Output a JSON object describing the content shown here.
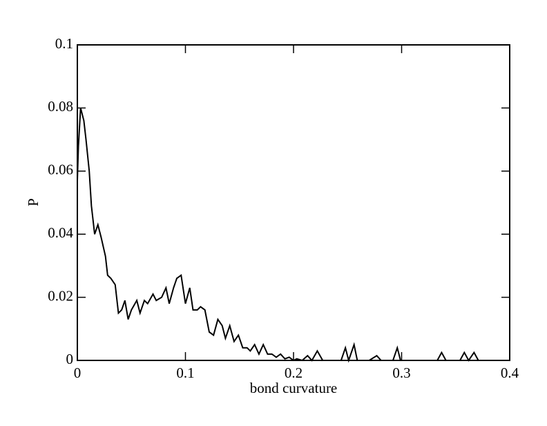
{
  "chart_data": {
    "type": "line",
    "xlabel": "bond curvature",
    "ylabel": "P",
    "x": [
      0,
      0.001,
      0.003,
      0.006,
      0.008,
      0.011,
      0.013,
      0.016,
      0.019,
      0.022,
      0.026,
      0.028,
      0.031,
      0.035,
      0.038,
      0.041,
      0.044,
      0.047,
      0.05,
      0.055,
      0.058,
      0.062,
      0.065,
      0.07,
      0.073,
      0.078,
      0.082,
      0.085,
      0.089,
      0.092,
      0.096,
      0.1,
      0.104,
      0.107,
      0.111,
      0.114,
      0.118,
      0.122,
      0.126,
      0.13,
      0.134,
      0.137,
      0.141,
      0.145,
      0.149,
      0.153,
      0.157,
      0.16,
      0.164,
      0.168,
      0.172,
      0.176,
      0.18,
      0.184,
      0.188,
      0.192,
      0.196,
      0.2,
      0.203,
      0.208,
      0.213,
      0.217,
      0.222,
      0.227,
      0.244,
      0.248,
      0.251,
      0.256,
      0.259,
      0.27,
      0.277,
      0.281,
      0.292,
      0.296,
      0.299,
      0.333,
      0.337,
      0.341,
      0.354,
      0.358,
      0.362,
      0.367,
      0.371
    ],
    "series": [
      {
        "color": "#000000",
        "values": [
          0.057,
          0.068,
          0.08,
          0.076,
          0.07,
          0.06,
          0.049,
          0.04,
          0.043,
          0.039,
          0.033,
          0.027,
          0.026,
          0.024,
          0.015,
          0.016,
          0.019,
          0.013,
          0.016,
          0.019,
          0.015,
          0.019,
          0.018,
          0.021,
          0.019,
          0.02,
          0.023,
          0.018,
          0.023,
          0.026,
          0.027,
          0.018,
          0.023,
          0.016,
          0.016,
          0.017,
          0.016,
          0.009,
          0.008,
          0.013,
          0.011,
          0.007,
          0.011,
          0.006,
          0.008,
          0.004,
          0.004,
          0.003,
          0.005,
          0.002,
          0.005,
          0.002,
          0.002,
          0.001,
          0.002,
          0.0005,
          0.001,
          0,
          0.0005,
          0,
          0.0015,
          0,
          0.003,
          0,
          0,
          0.004,
          0,
          0.005,
          0,
          0,
          0.0015,
          0,
          0,
          0.004,
          0,
          0,
          0.0025,
          0,
          0,
          0.0025,
          0,
          0.0025,
          0
        ]
      }
    ],
    "xlim": [
      0,
      0.4
    ],
    "xticks": [
      0,
      0.1,
      0.2,
      0.3,
      0.4
    ],
    "ylim": [
      0,
      0.1
    ],
    "yticks": [
      0,
      0.02,
      0.04,
      0.06,
      0.08,
      0.1
    ]
  }
}
